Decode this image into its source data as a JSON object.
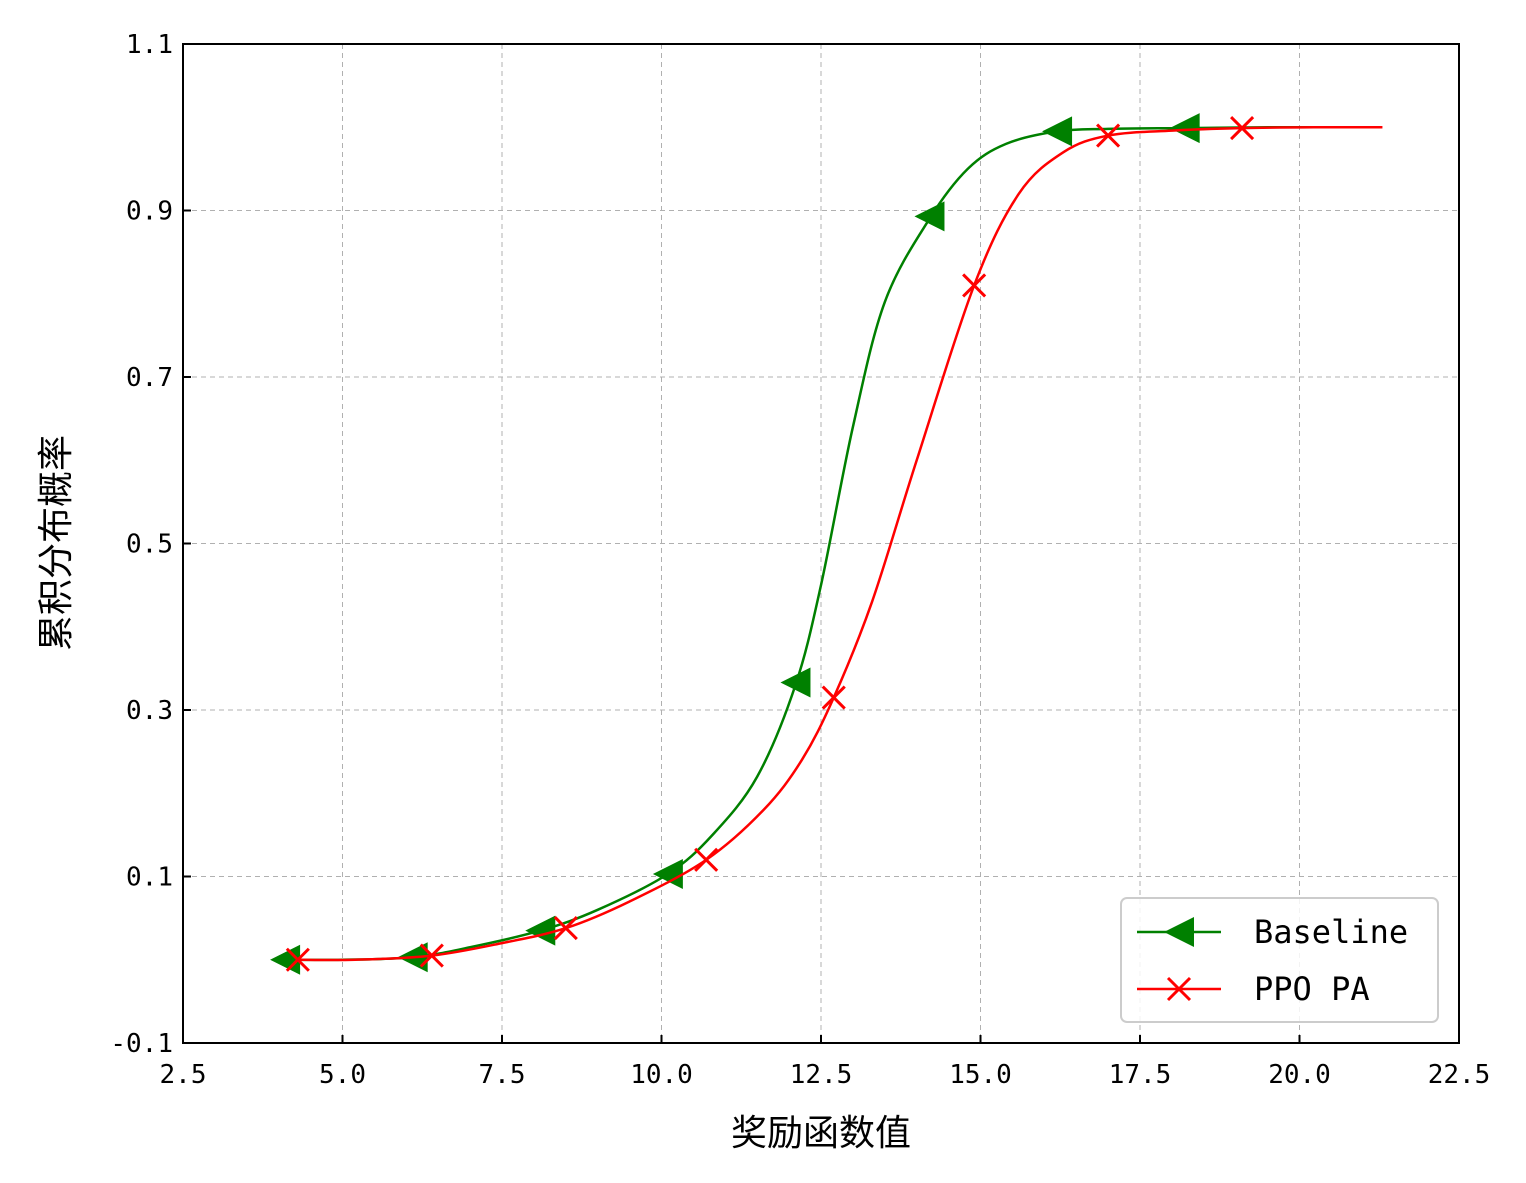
{
  "chart_data": {
    "type": "line",
    "title": "",
    "xlabel": "奖励函数值",
    "ylabel": "累积分布概率",
    "xlim": [
      2.5,
      22.5
    ],
    "ylim": [
      -0.1,
      1.1
    ],
    "xticks": [
      "2.5",
      "5.0",
      "7.5",
      "10.0",
      "12.5",
      "15.0",
      "17.5",
      "20.0",
      "22.5"
    ],
    "yticks": [
      "-0.1",
      "0.1",
      "0.3",
      "0.5",
      "0.7",
      "0.9",
      "1.1"
    ],
    "grid": true,
    "legend_position": "bottom-right",
    "series": [
      {
        "name": "Baseline",
        "color": "#008000",
        "marker": "triangle-left",
        "x": [
          4.1,
          5.0,
          6.1,
          7.0,
          8.1,
          9.0,
          10.1,
          10.8,
          11.5,
          12.1,
          12.5,
          13.0,
          13.5,
          14.2,
          14.8,
          15.4,
          16.2,
          17.0,
          18.2,
          19.5,
          20.3
        ],
        "y": [
          0.0,
          0.0,
          0.003,
          0.015,
          0.035,
          0.06,
          0.103,
          0.15,
          0.22,
          0.33,
          0.45,
          0.64,
          0.79,
          0.89,
          0.95,
          0.98,
          0.995,
          0.998,
          0.999,
          1.0,
          1.0
        ],
        "markers_x": [
          4.1,
          6.1,
          8.1,
          10.1,
          12.1,
          14.2,
          16.2,
          18.2
        ],
        "markers_y": [
          0.0,
          0.003,
          0.035,
          0.103,
          0.333,
          0.893,
          0.995,
          0.999
        ]
      },
      {
        "name": "PPO PA",
        "color": "#ff0000",
        "marker": "x",
        "x": [
          4.3,
          5.2,
          6.4,
          7.5,
          8.5,
          9.5,
          10.7,
          11.6,
          12.2,
          12.7,
          13.3,
          14.0,
          14.9,
          15.6,
          16.3,
          17.0,
          18.0,
          19.1,
          20.3,
          21.3
        ],
        "y": [
          0.0,
          0.0,
          0.005,
          0.02,
          0.038,
          0.07,
          0.12,
          0.18,
          0.24,
          0.315,
          0.43,
          0.6,
          0.81,
          0.92,
          0.97,
          0.99,
          0.996,
          0.999,
          1.0,
          1.0
        ],
        "markers_x": [
          4.3,
          6.4,
          8.5,
          10.7,
          12.7,
          14.9,
          17.0,
          19.1
        ],
        "markers_y": [
          0.0,
          0.005,
          0.038,
          0.12,
          0.315,
          0.81,
          0.99,
          0.999
        ]
      }
    ]
  }
}
